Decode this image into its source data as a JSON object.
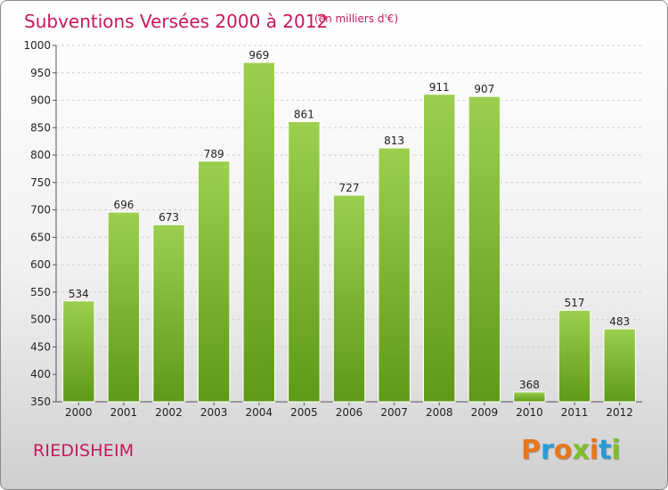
{
  "header": {
    "title": "Subventions Versées 2000 à 2012",
    "unit": "(en milliers d'€)"
  },
  "footer": {
    "commune": "RIEDISHEIM",
    "brand": "Proxiti",
    "brand_colors": [
      "#e8771c",
      "#2a9ad6",
      "#e8771c",
      "#7fbd2a",
      "#e8771c",
      "#2a9ad6",
      "#7fbd2a"
    ]
  },
  "chart_data": {
    "type": "bar",
    "title": "Subventions Versées 2000 à 2012",
    "subtitle": "(en milliers d'€)",
    "categories": [
      "2000",
      "2001",
      "2002",
      "2003",
      "2004",
      "2005",
      "2006",
      "2007",
      "2008",
      "2009",
      "2010",
      "2011",
      "2012"
    ],
    "values": [
      534,
      696,
      673,
      789,
      969,
      861,
      727,
      813,
      911,
      907,
      368,
      517,
      483
    ],
    "ylim": [
      350,
      1000
    ],
    "yticks": [
      350,
      400,
      450,
      500,
      550,
      600,
      650,
      700,
      750,
      800,
      850,
      900,
      950,
      1000
    ],
    "grid": true,
    "legend": "none",
    "bar_color_top": "#9ccf50",
    "bar_color_bottom": "#5e9a16"
  }
}
